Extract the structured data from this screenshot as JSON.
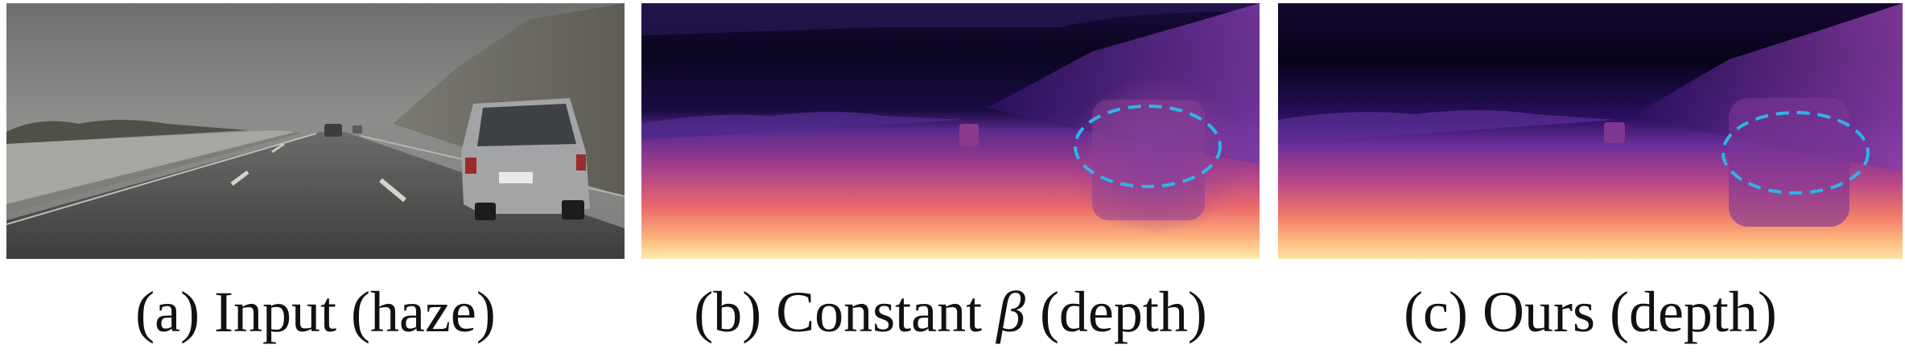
{
  "figure": {
    "panels": [
      {
        "id": "a",
        "caption": "(a) Input (haze)",
        "image": "hazy road scene with car"
      },
      {
        "id": "b",
        "caption_prefix": "(b) Constant ",
        "caption_symbol": "β",
        "caption_suffix": " (depth)",
        "image": "depth map (magma colormap)"
      },
      {
        "id": "c",
        "caption": "(c) Ours (depth)",
        "image": "depth map (magma colormap)"
      }
    ],
    "highlight_color": "#2cb5ea",
    "colormap": [
      "#000004",
      "#3b0f70",
      "#8c2981",
      "#de4968",
      "#fe9f6d",
      "#fcfdbf"
    ]
  }
}
